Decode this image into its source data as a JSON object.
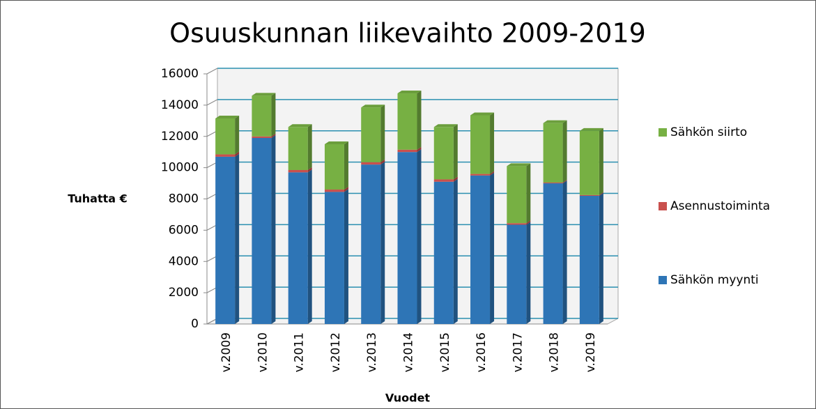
{
  "chart_data": {
    "type": "bar",
    "stacked": true,
    "title": "Osuuskunnan liikevaihto 2009-2019",
    "y_label": "Tuhatta €",
    "x_label": "Vuodet",
    "categories": [
      "v.2009",
      "v.2010",
      "v.2011",
      "v.2012",
      "v.2013",
      "v.2014",
      "v.2015",
      "v.2016",
      "v.2017",
      "v.2018",
      "v.2019"
    ],
    "series": [
      {
        "name": "Sähkön myynti",
        "color": "#2e75b6",
        "values": [
          10700,
          11900,
          9700,
          8450,
          10200,
          11000,
          9100,
          9500,
          6350,
          9000,
          8200
        ]
      },
      {
        "name": "Asennustoiminta",
        "color": "#c9504d",
        "values": [
          150,
          100,
          150,
          150,
          150,
          150,
          150,
          100,
          100,
          50,
          50
        ]
      },
      {
        "name": "Sähkön siirto",
        "color": "#77b043",
        "values": [
          2300,
          2600,
          2750,
          2900,
          3500,
          3600,
          3350,
          3750,
          3650,
          3800,
          4100
        ]
      }
    ],
    "ylim": [
      0,
      16000
    ],
    "yticks": [
      0,
      2000,
      4000,
      6000,
      8000,
      10000,
      12000,
      14000,
      16000
    ],
    "grid": true,
    "legend": "right"
  }
}
